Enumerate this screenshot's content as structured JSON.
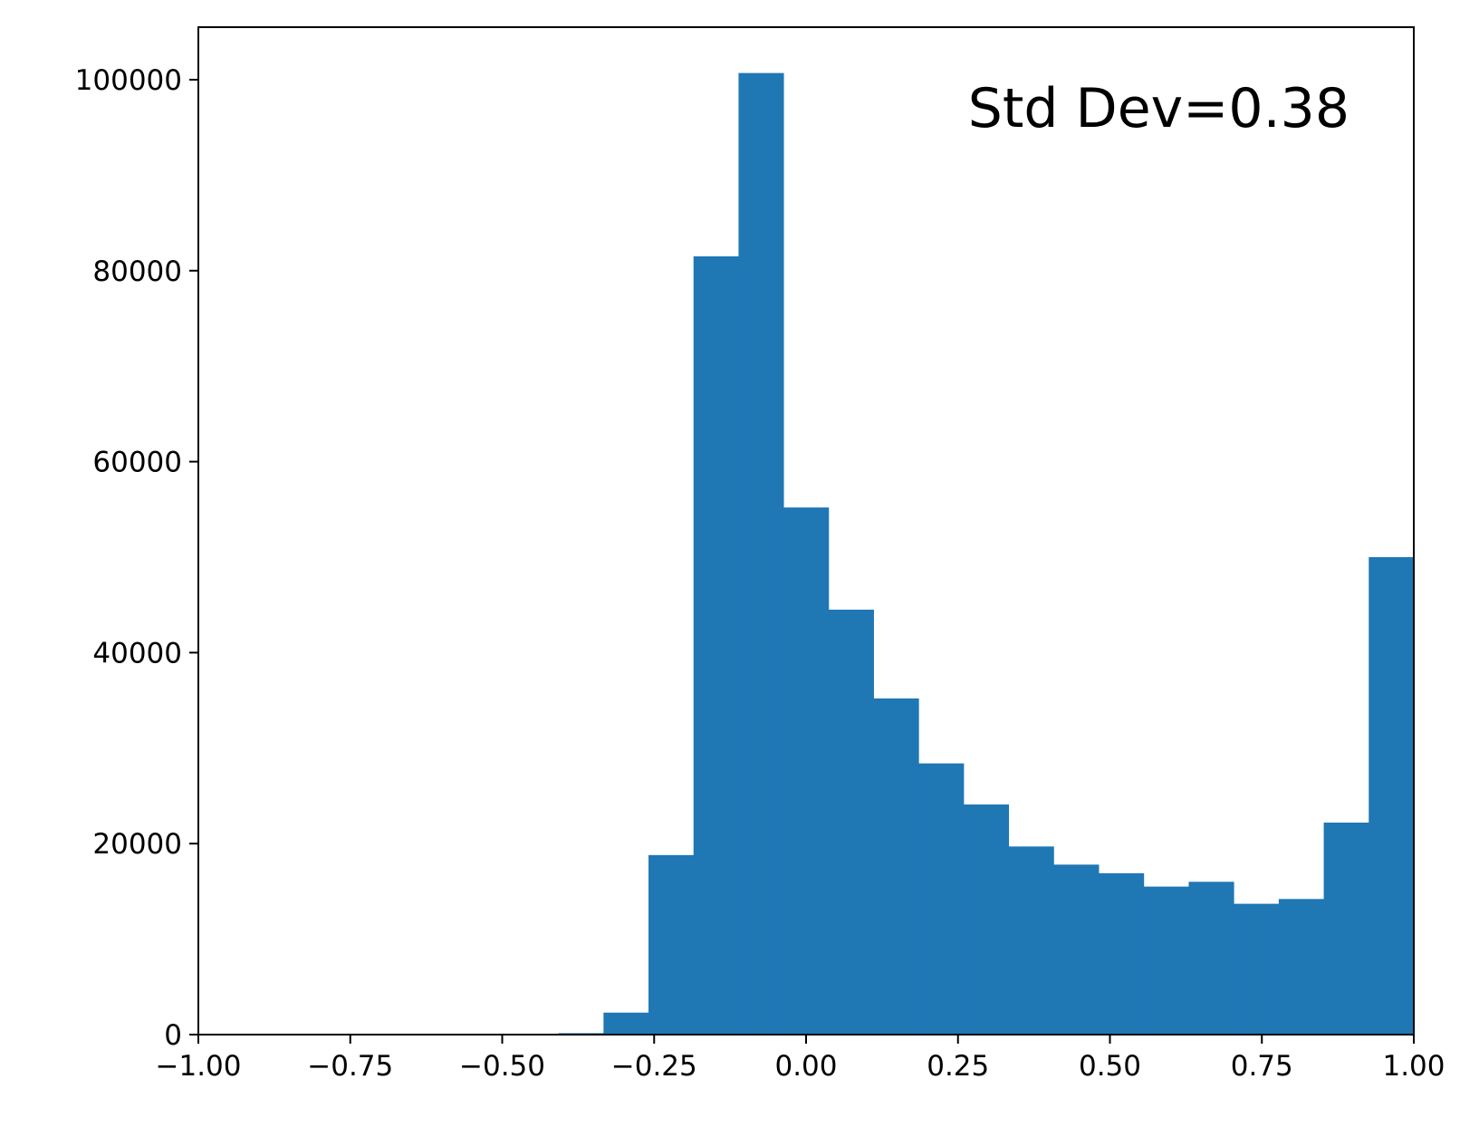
{
  "chart_data": {
    "type": "bar",
    "subtype": "histogram",
    "title": "",
    "xlabel": "",
    "ylabel": "",
    "annotation": "Std Dev=0.38",
    "annotation_placement": "top-right",
    "xlim": [
      -1.0,
      1.0
    ],
    "ylim": [
      0,
      105500
    ],
    "grid": false,
    "bar_color": "#1f77b4",
    "xticks": [
      -1.0,
      -0.75,
      -0.5,
      -0.25,
      0.0,
      0.25,
      0.5,
      0.75,
      1.0
    ],
    "xtick_labels": [
      "−1.00",
      "−0.75",
      "−0.50",
      "−0.25",
      "0.00",
      "0.25",
      "0.50",
      "0.75",
      "1.00"
    ],
    "yticks": [
      0,
      20000,
      40000,
      60000,
      80000,
      100000
    ],
    "ytick_labels": [
      "0",
      "20000",
      "40000",
      "60000",
      "80000",
      "100000"
    ],
    "bin_edges": [
      -1.0,
      -0.925926,
      -0.851852,
      -0.777778,
      -0.703704,
      -0.62963,
      -0.555556,
      -0.481481,
      -0.407407,
      -0.333333,
      -0.259259,
      -0.185185,
      -0.111111,
      -0.037037,
      0.037037,
      0.111111,
      0.185185,
      0.259259,
      0.333333,
      0.407407,
      0.481481,
      0.555556,
      0.62963,
      0.703704,
      0.777778,
      0.851852,
      0.925926,
      1.0
    ],
    "values": [
      0,
      0,
      0,
      0,
      0,
      0,
      0,
      0,
      150,
      2300,
      18800,
      81500,
      100700,
      55200,
      44500,
      35200,
      28400,
      24100,
      19700,
      17800,
      16900,
      15500,
      16000,
      13700,
      14200,
      22200,
      50000
    ]
  }
}
